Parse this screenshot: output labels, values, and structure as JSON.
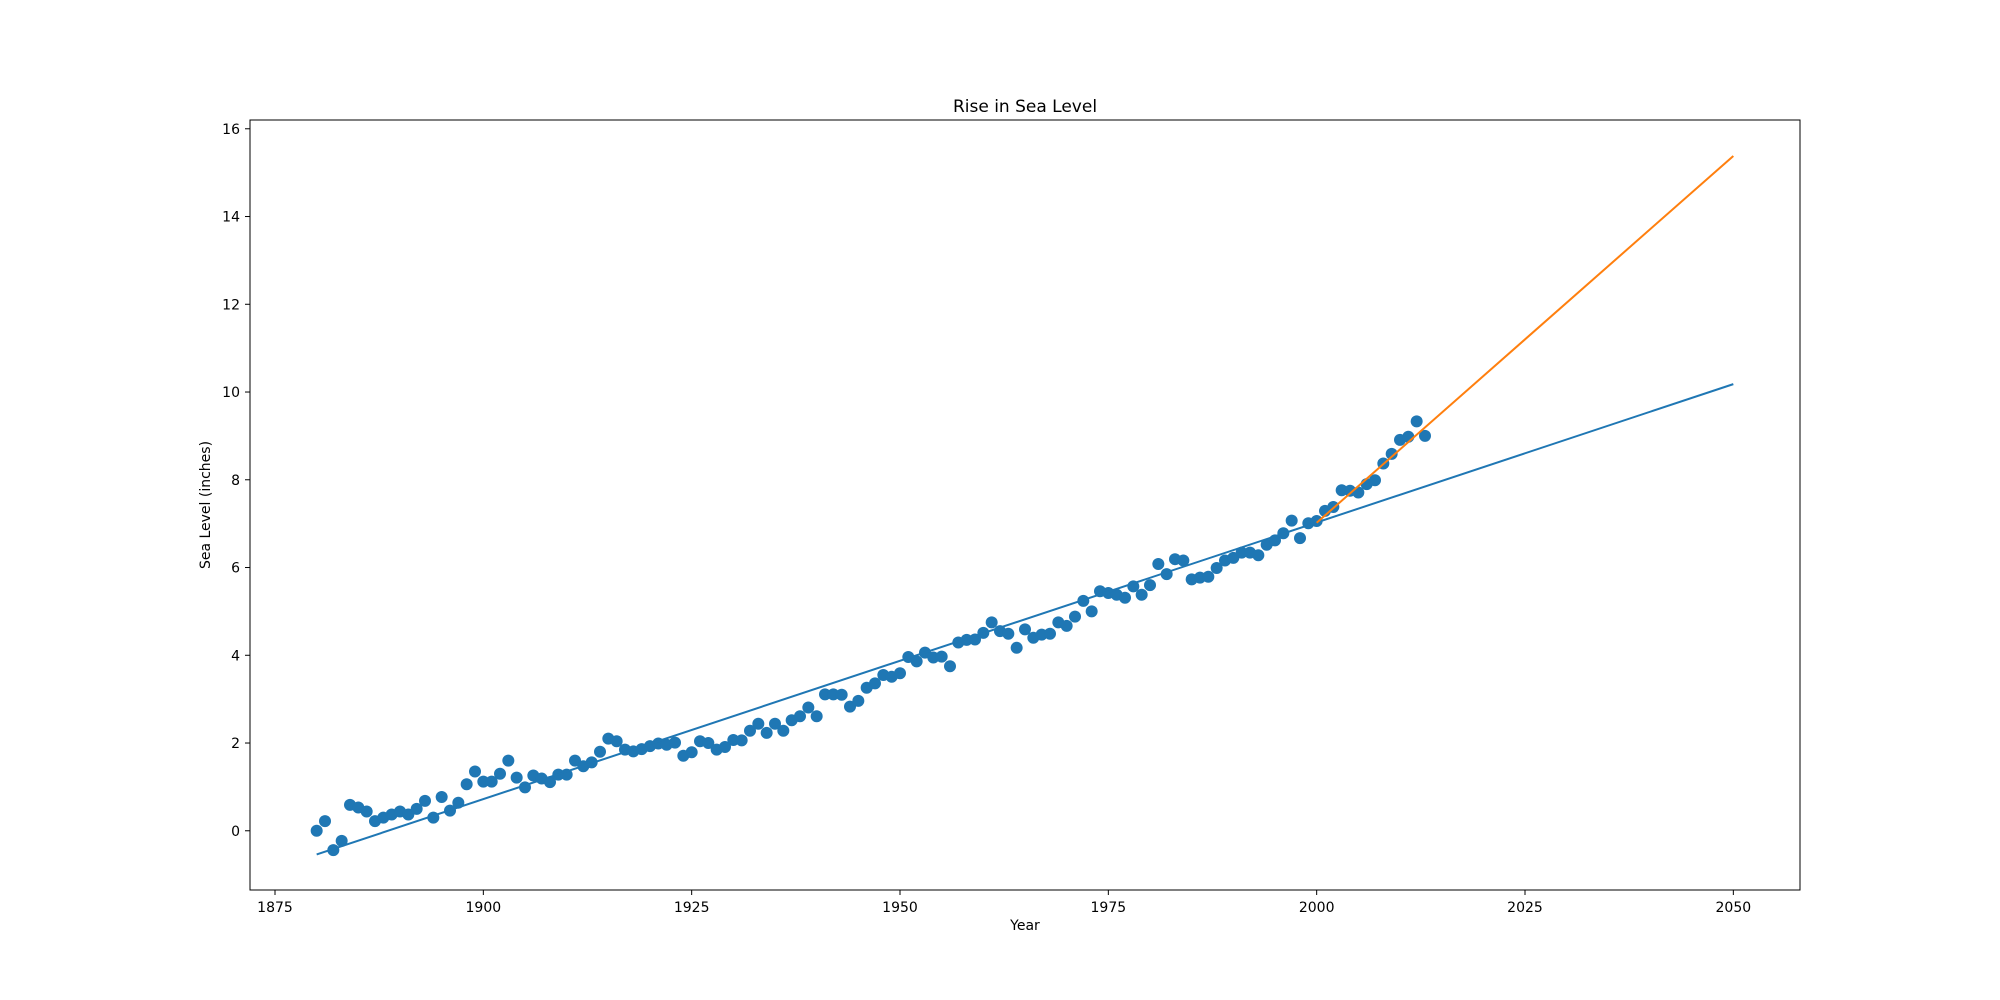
{
  "chart_data": {
    "type": "scatter",
    "title": "Rise in Sea Level",
    "xlabel": "Year",
    "ylabel": "Sea Level (inches)",
    "xlim": [
      1872,
      2058
    ],
    "ylim": [
      -1.35,
      16.2
    ],
    "xticks": [
      1875,
      1900,
      1925,
      1950,
      1975,
      2000,
      2025,
      2050
    ],
    "yticks": [
      0,
      2,
      4,
      6,
      8,
      10,
      12,
      14,
      16
    ],
    "grid": false,
    "colors": {
      "scatter": "#1f77b4",
      "fit_all": "#1f77b4",
      "fit_recent": "#ff7f0e",
      "axes": "#000000",
      "background": "#ffffff"
    },
    "series": [
      {
        "kind": "scatter",
        "x": [
          1880,
          1881,
          1882,
          1883,
          1884,
          1885,
          1886,
          1887,
          1888,
          1889,
          1890,
          1891,
          1892,
          1893,
          1894,
          1895,
          1896,
          1897,
          1898,
          1899,
          1900,
          1901,
          1902,
          1903,
          1904,
          1905,
          1906,
          1907,
          1908,
          1909,
          1910,
          1911,
          1912,
          1913,
          1914,
          1915,
          1916,
          1917,
          1918,
          1919,
          1920,
          1921,
          1922,
          1923,
          1924,
          1925,
          1926,
          1927,
          1928,
          1929,
          1930,
          1931,
          1932,
          1933,
          1934,
          1935,
          1936,
          1937,
          1938,
          1939,
          1940,
          1941,
          1942,
          1943,
          1944,
          1945,
          1946,
          1947,
          1948,
          1949,
          1950,
          1951,
          1952,
          1953,
          1954,
          1955,
          1956,
          1957,
          1958,
          1959,
          1960,
          1961,
          1962,
          1963,
          1964,
          1965,
          1966,
          1967,
          1968,
          1969,
          1970,
          1971,
          1972,
          1973,
          1974,
          1975,
          1976,
          1977,
          1978,
          1979,
          1980,
          1981,
          1982,
          1983,
          1984,
          1985,
          1986,
          1987,
          1988,
          1989,
          1990,
          1991,
          1992,
          1993,
          1994,
          1995,
          1996,
          1997,
          1998,
          1999,
          2000,
          2001,
          2002,
          2003,
          2004,
          2005,
          2006,
          2007,
          2008,
          2009,
          2010,
          2011,
          2012,
          2013
        ],
        "y": [
          0.0,
          0.22,
          -0.44,
          -0.23,
          0.59,
          0.53,
          0.44,
          0.22,
          0.3,
          0.37,
          0.44,
          0.37,
          0.5,
          0.68,
          0.3,
          0.77,
          0.46,
          0.64,
          1.06,
          1.35,
          1.12,
          1.12,
          1.3,
          1.6,
          1.21,
          0.99,
          1.26,
          1.19,
          1.11,
          1.28,
          1.28,
          1.6,
          1.47,
          1.56,
          1.8,
          2.1,
          2.04,
          1.85,
          1.81,
          1.86,
          1.93,
          1.99,
          1.96,
          2.01,
          1.71,
          1.79,
          2.04,
          2.0,
          1.85,
          1.91,
          2.07,
          2.06,
          2.28,
          2.44,
          2.23,
          2.44,
          2.28,
          2.52,
          2.61,
          2.81,
          2.61,
          3.11,
          3.11,
          3.1,
          2.83,
          2.96,
          3.26,
          3.36,
          3.55,
          3.51,
          3.59,
          3.96,
          3.86,
          4.06,
          3.95,
          3.97,
          3.75,
          4.29,
          4.35,
          4.36,
          4.51,
          4.75,
          4.55,
          4.49,
          4.17,
          4.59,
          4.4,
          4.47,
          4.49,
          4.75,
          4.67,
          4.88,
          5.24,
          5.0,
          5.46,
          5.42,
          5.38,
          5.31,
          5.57,
          5.38,
          5.6,
          6.08,
          5.85,
          6.19,
          6.16,
          5.73,
          5.77,
          5.79,
          5.99,
          6.16,
          6.22,
          6.34,
          6.34,
          6.28,
          6.52,
          6.62,
          6.78,
          7.07,
          6.67,
          7.01,
          7.06,
          7.29,
          7.38,
          7.76,
          7.75,
          7.71,
          7.9,
          7.99,
          8.37,
          8.59,
          8.91,
          8.98,
          9.33,
          9.0
        ]
      },
      {
        "kind": "line",
        "name_hint": "fit_all",
        "x": [
          1880,
          2050
        ],
        "y": [
          -0.54,
          10.18
        ]
      },
      {
        "kind": "line",
        "name_hint": "fit_recent",
        "x": [
          2000,
          2050
        ],
        "y": [
          7.02,
          15.38
        ]
      }
    ]
  }
}
